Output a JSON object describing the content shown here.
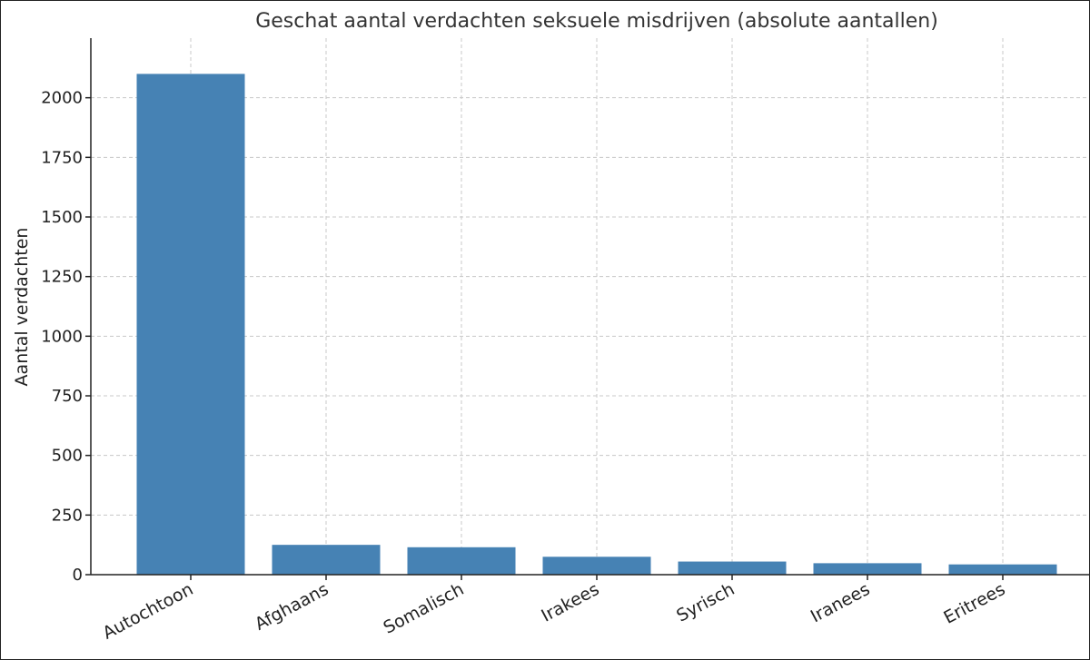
{
  "chart_data": {
    "type": "bar",
    "title": "Geschat aantal verdachten seksuele misdrijven (absolute aantallen)",
    "xlabel": "",
    "ylabel": "Aantal verdachten",
    "categories": [
      "Autochtoon",
      "Afghaans",
      "Somalisch",
      "Irakees",
      "Syrisch",
      "Iranees",
      "Eritrees"
    ],
    "values": [
      2100,
      125,
      115,
      75,
      55,
      48,
      43
    ],
    "ylim": [
      0,
      2250
    ],
    "yticks": [
      0,
      250,
      500,
      750,
      1000,
      1250,
      1500,
      1750,
      2000
    ],
    "grid": true,
    "bar_color": "#4682b4"
  }
}
